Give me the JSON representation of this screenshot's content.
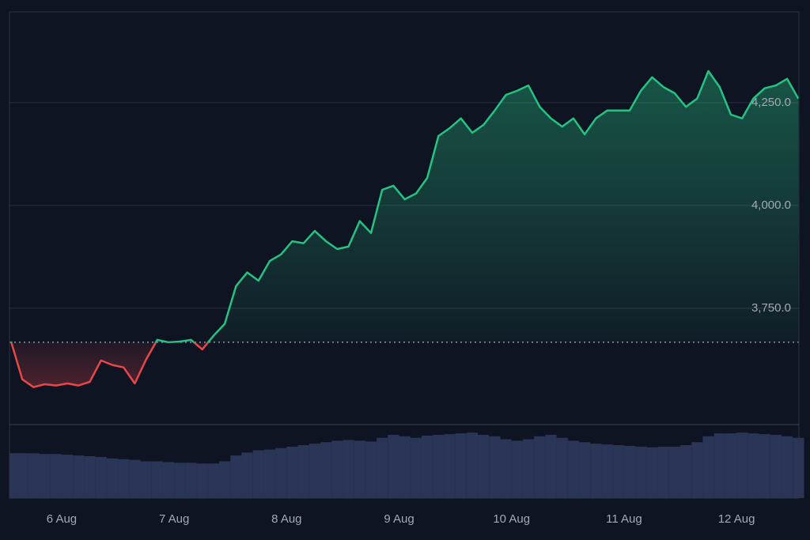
{
  "chart_data": {
    "type": "line",
    "x": [
      5.55,
      5.65,
      5.75,
      5.85,
      5.95,
      6.05,
      6.15,
      6.25,
      6.35,
      6.45,
      6.55,
      6.65,
      6.75,
      6.85,
      6.95,
      7.05,
      7.15,
      7.25,
      7.35,
      7.45,
      7.55,
      7.65,
      7.75,
      7.85,
      7.95,
      8.05,
      8.15,
      8.25,
      8.35,
      8.45,
      8.55,
      8.65,
      8.75,
      8.85,
      8.95,
      9.05,
      9.15,
      9.25,
      9.35,
      9.45,
      9.55,
      9.65,
      9.75,
      9.85,
      9.95,
      10.05,
      10.15,
      10.25,
      10.35,
      10.45,
      10.55,
      10.65,
      10.75,
      10.85,
      10.95,
      11.05,
      11.15,
      11.25,
      11.35,
      11.45,
      11.55,
      11.65,
      11.75,
      11.85,
      11.95,
      12.05,
      12.15,
      12.25,
      12.35,
      12.45,
      12.55
    ],
    "values": [
      3669,
      3577,
      3558,
      3565,
      3562,
      3567,
      3562,
      3571,
      3623,
      3612,
      3606,
      3567,
      3625,
      3673,
      3667,
      3669,
      3673,
      3650,
      3683,
      3712,
      3804,
      3837,
      3817,
      3865,
      3881,
      3913,
      3908,
      3938,
      3913,
      3894,
      3900,
      3962,
      3933,
      4038,
      4048,
      4015,
      4029,
      4067,
      4169,
      4188,
      4212,
      4177,
      4196,
      4231,
      4269,
      4279,
      4292,
      4240,
      4212,
      4192,
      4212,
      4173,
      4212,
      4231,
      4231,
      4231,
      4279,
      4312,
      4288,
      4273,
      4240,
      4260,
      4327,
      4288,
      4221,
      4212,
      4260,
      4285,
      4292,
      4308,
      4260
    ],
    "volume": [
      61,
      61,
      61,
      60,
      60,
      59,
      58,
      57,
      56,
      54,
      53,
      52,
      50,
      50,
      49,
      48,
      48,
      47,
      47,
      50,
      58,
      62,
      65,
      66,
      68,
      70,
      72,
      74,
      76,
      78,
      79,
      78,
      77,
      82,
      86,
      84,
      82,
      85,
      86,
      87,
      88,
      89,
      86,
      84,
      80,
      78,
      80,
      84,
      86,
      82,
      78,
      76,
      74,
      73,
      72,
      71,
      70,
      69,
      70,
      70,
      72,
      76,
      84,
      88,
      88,
      89,
      88,
      87,
      86,
      84,
      82
    ],
    "baseline": 3667.34,
    "color_up": "#26c281",
    "color_down": "#e8474a",
    "volume_color": "#2a3558",
    "xlim": [
      5.536,
      12.555
    ],
    "xticks": [
      {
        "value": 6,
        "label": "6 Aug"
      },
      {
        "value": 7,
        "label": "7 Aug"
      },
      {
        "value": 8,
        "label": "8 Aug"
      },
      {
        "value": 9,
        "label": "9 Aug"
      },
      {
        "value": 10,
        "label": "10 Aug"
      },
      {
        "value": 11,
        "label": "11 Aug"
      },
      {
        "value": 12,
        "label": "12 Aug"
      }
    ],
    "ylim": [
      3467,
      4471
    ],
    "yticks": [
      {
        "value": 3750,
        "label": "3,750.0"
      },
      {
        "value": 4000,
        "label": "4,000.0"
      },
      {
        "value": 4250,
        "label": "4,250.0"
      }
    ],
    "vlim": [
      0,
      100
    ],
    "grid": true
  }
}
